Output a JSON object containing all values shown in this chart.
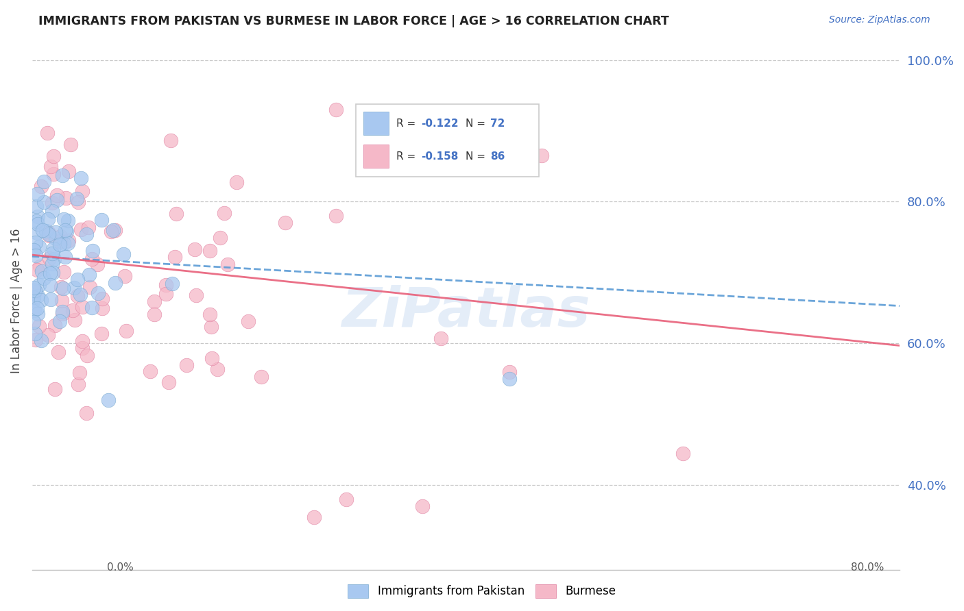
{
  "title": "IMMIGRANTS FROM PAKISTAN VS BURMESE IN LABOR FORCE | AGE > 16 CORRELATION CHART",
  "source": "Source: ZipAtlas.com",
  "ylabel": "In Labor Force | Age > 16",
  "watermark": "ZiPatlas",
  "pakistan_color": "#a8c8f0",
  "pakistan_edge_color": "#7aaad0",
  "burmese_color": "#f5b8c8",
  "burmese_edge_color": "#e080a0",
  "pakistan_line_color": "#5b9bd5",
  "burmese_line_color": "#e8607a",
  "right_tick_color": "#4472C4",
  "xlim": [
    0.0,
    0.8
  ],
  "ylim": [
    0.28,
    1.04
  ],
  "right_yticks": [
    1.0,
    0.8,
    0.6,
    0.4
  ],
  "right_ytick_labels": [
    "100.0%",
    "80.0%",
    "60.0%",
    "40.0%"
  ],
  "pak_line_y0": 0.723,
  "pak_line_y1": 0.653,
  "bur_line_y0": 0.725,
  "bur_line_y1": 0.597
}
